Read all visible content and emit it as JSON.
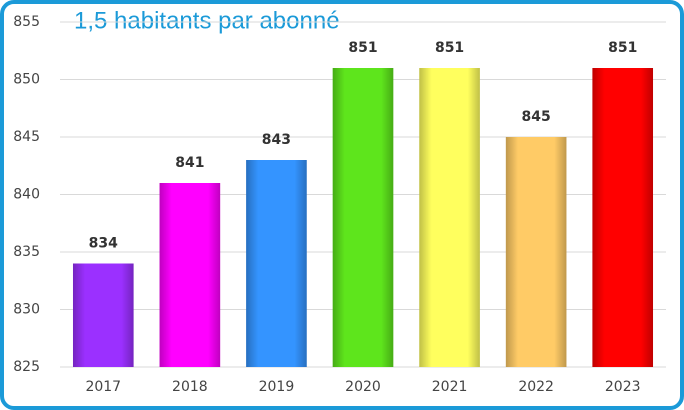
{
  "chart_data": {
    "type": "bar",
    "title": "1,5 habitants par abonné",
    "categories": [
      "2017",
      "2018",
      "2019",
      "2020",
      "2021",
      "2022",
      "2023"
    ],
    "values": [
      834,
      841,
      843,
      851,
      851,
      845,
      851
    ],
    "colors": [
      "#9b30ff",
      "#ff00ff",
      "#3494ff",
      "#5ee51c",
      "#ffff5e",
      "#ffcb66",
      "#ff0000"
    ],
    "ylim": [
      825,
      855
    ],
    "yticks": [
      825,
      830,
      835,
      840,
      845,
      850,
      855
    ],
    "grid": true
  }
}
